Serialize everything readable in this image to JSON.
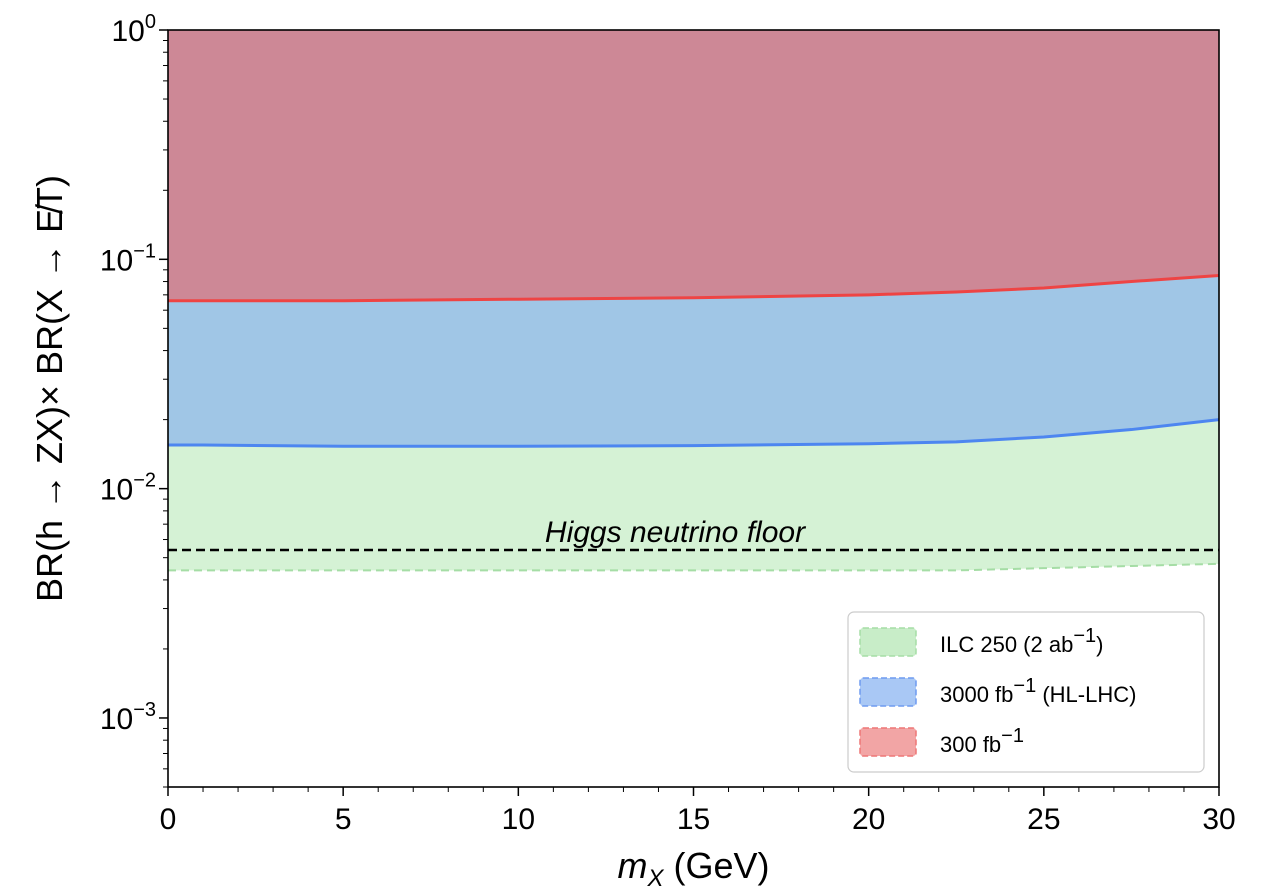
{
  "chart_data": {
    "type": "area",
    "x_scale": "linear",
    "y_scale": "log",
    "xlim": [
      0,
      30
    ],
    "ylim": [
      0.0005,
      1
    ],
    "xlabel_parts": {
      "var": "m",
      "sub": "X",
      "unit": " (GeV)"
    },
    "ylabel_text": "BR(h → ZX)× BR(X → E̸T)",
    "x_ticks": [
      0,
      5,
      10,
      15,
      20,
      25,
      30
    ],
    "x_tick_labels": [
      "0",
      "5",
      "10",
      "15",
      "20",
      "25",
      "30"
    ],
    "y_ticks": [
      {
        "value": 1,
        "base": "10",
        "exp": "0"
      },
      {
        "value": 0.1,
        "base": "10",
        "exp": "−1"
      },
      {
        "value": 0.01,
        "base": "10",
        "exp": "−2"
      },
      {
        "value": 0.001,
        "base": "10",
        "exp": "−3"
      }
    ],
    "x": [
      0,
      1,
      5,
      10,
      15,
      20,
      22.5,
      25,
      27.5,
      30
    ],
    "series": [
      {
        "name": "300 fb⁻¹",
        "fill": "#cd8896",
        "line": "#ee4444",
        "lower": [
          0.066,
          0.066,
          0.066,
          0.067,
          0.068,
          0.07,
          0.072,
          0.075,
          0.08,
          0.085
        ]
      },
      {
        "name": "3000 fb⁻¹ (HL-LHC)",
        "fill": "#a0c6e6",
        "line": "#4d86f0",
        "lower": [
          0.0155,
          0.0155,
          0.0153,
          0.0153,
          0.0154,
          0.0157,
          0.016,
          0.0168,
          0.0181,
          0.02
        ]
      },
      {
        "name": "ILC 250 (2 ab⁻¹)",
        "fill": "#d5f2d5",
        "line": "#a5dda5",
        "lower": [
          0.0044,
          0.0044,
          0.0044,
          0.0044,
          0.0044,
          0.0044,
          0.0044,
          0.0045,
          0.0046,
          0.0047
        ]
      }
    ],
    "reference_line": {
      "value": 0.0054,
      "style": "dashed",
      "label": "Higgs neutrino floor"
    },
    "legend": {
      "placement": "lower-right",
      "entries": [
        {
          "text": "ILC 250 (2 ab",
          "sup": "−1",
          "tail": ")",
          "fill": "#c8edc8",
          "edge": "#a5dda5"
        },
        {
          "text": "3000 fb",
          "sup": "−1",
          "tail": " (HL-LHC)",
          "fill": "#a9c8f5",
          "edge": "#6f9bf0"
        },
        {
          "text": "300 fb",
          "sup": "−1",
          "tail": "",
          "fill": "#f2a5a5",
          "edge": "#ee7777"
        }
      ]
    }
  }
}
